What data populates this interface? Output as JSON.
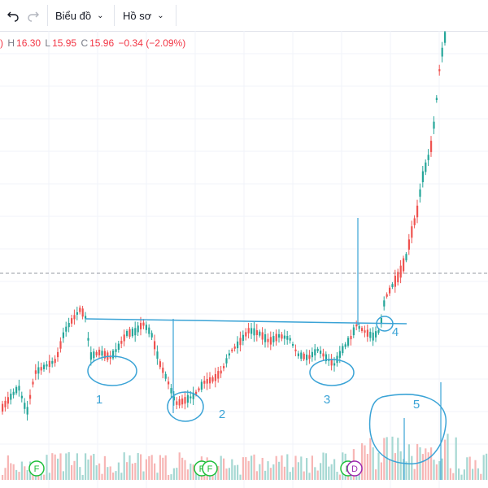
{
  "toolbar": {
    "undo_icon": "undo-arrow-icon",
    "redo_icon": "redo-arrow-icon",
    "chart_menu_label": "Biểu đồ",
    "profile_menu_label": "Hồ sơ"
  },
  "ohlc": {
    "left_fragment": ")",
    "high_key": "H",
    "high_value": "16.30",
    "low_key": "L",
    "low_value": "15.95",
    "close_key": "C",
    "close_value": "15.96",
    "change": "−0.34 (−2.09%)"
  },
  "colors": {
    "up": "#26a69a",
    "down": "#ef5350",
    "annotation": "#3aa3d6",
    "event_marker": "#1fbf3a",
    "event_marker_alt": "#9c27b0",
    "grid": "#f0f3fa",
    "last_price_line": "#9598a1"
  },
  "annotations": {
    "labels": [
      "1",
      "2",
      "3",
      "4",
      "5"
    ]
  },
  "event_markers": {
    "labels": [
      "F",
      "F",
      "F",
      "F",
      "D"
    ]
  }
}
